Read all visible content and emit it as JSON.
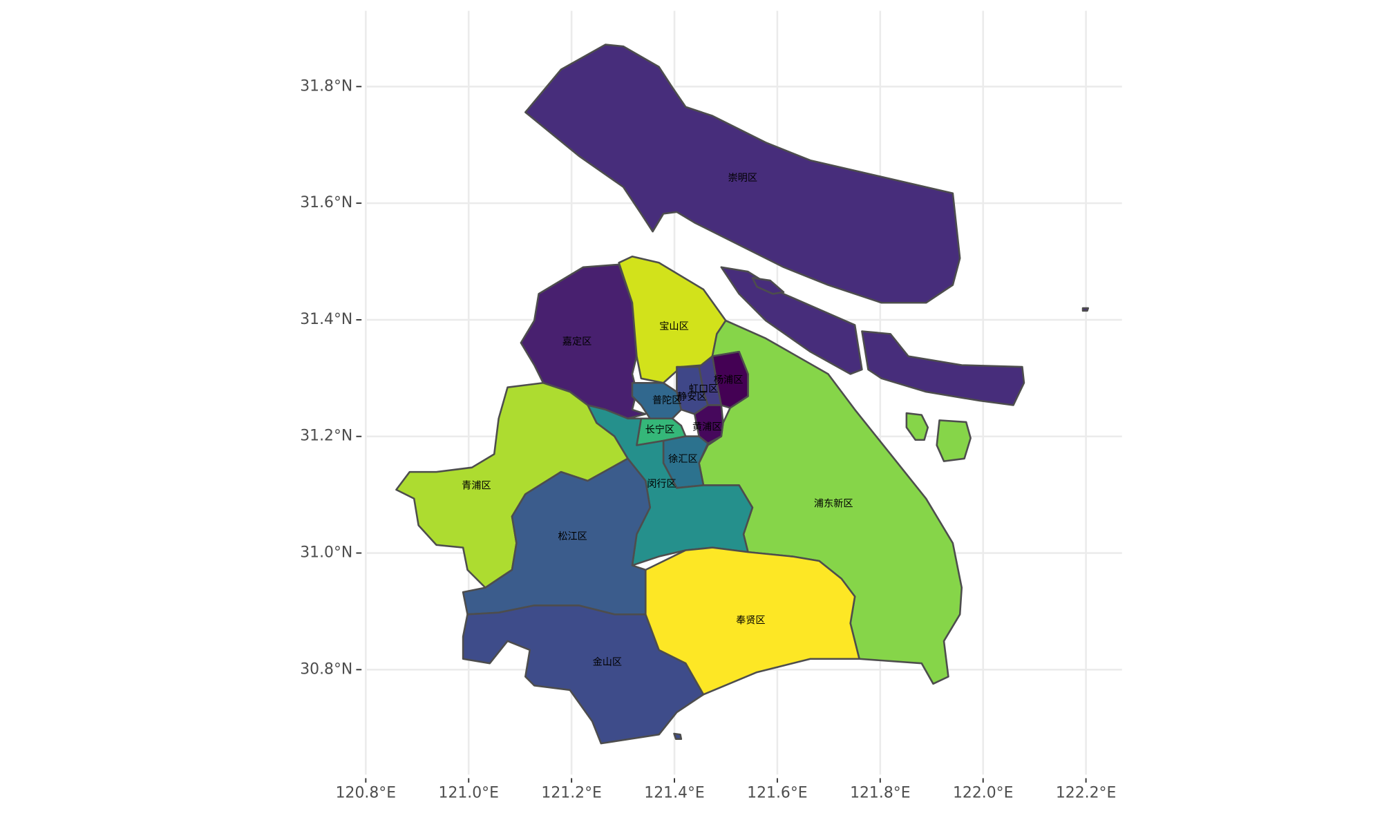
{
  "map": {
    "xlim": [
      120.79,
      122.27
    ],
    "ylim": [
      30.62,
      31.93
    ],
    "xticks": [
      {
        "value": 120.8,
        "label": "120.8°E"
      },
      {
        "value": 121.0,
        "label": "121.0°E"
      },
      {
        "value": 121.2,
        "label": "121.2°E"
      },
      {
        "value": 121.4,
        "label": "121.4°E"
      },
      {
        "value": 121.6,
        "label": "121.6°E"
      },
      {
        "value": 121.8,
        "label": "121.8°E"
      },
      {
        "value": 122.0,
        "label": "122.0°E"
      },
      {
        "value": 122.2,
        "label": "122.2°E"
      }
    ],
    "yticks": [
      {
        "value": 30.8,
        "label": "30.8°N"
      },
      {
        "value": 31.0,
        "label": "31.0°N"
      },
      {
        "value": 31.2,
        "label": "31.2°N"
      },
      {
        "value": 31.4,
        "label": "31.4°N"
      },
      {
        "value": 31.6,
        "label": "31.6°N"
      },
      {
        "value": 31.8,
        "label": "31.8°N"
      }
    ],
    "grid": true,
    "regions": [
      {
        "name": "崇明区",
        "color": "#472d7b"
      },
      {
        "name": "宝山区",
        "color": "#d2e21b"
      },
      {
        "name": "嘉定区",
        "color": "#48206f"
      },
      {
        "name": "杨浦区",
        "color": "#440154"
      },
      {
        "name": "虹口区",
        "color": "#433e85"
      },
      {
        "name": "静安区",
        "color": "#3f4788"
      },
      {
        "name": "普陀区",
        "color": "#31688e"
      },
      {
        "name": "长宁区",
        "color": "#35b779"
      },
      {
        "name": "黄浦区",
        "color": "#46085c"
      },
      {
        "name": "徐汇区",
        "color": "#2c728e"
      },
      {
        "name": "闵行区",
        "color": "#25908c"
      },
      {
        "name": "浦东新区",
        "color": "#86d549"
      },
      {
        "name": "青浦区",
        "color": "#addc30"
      },
      {
        "name": "松江区",
        "color": "#3b5c8c"
      },
      {
        "name": "奉贤区",
        "color": "#fde725"
      },
      {
        "name": "金山区",
        "color": "#3e4c8a"
      }
    ]
  }
}
